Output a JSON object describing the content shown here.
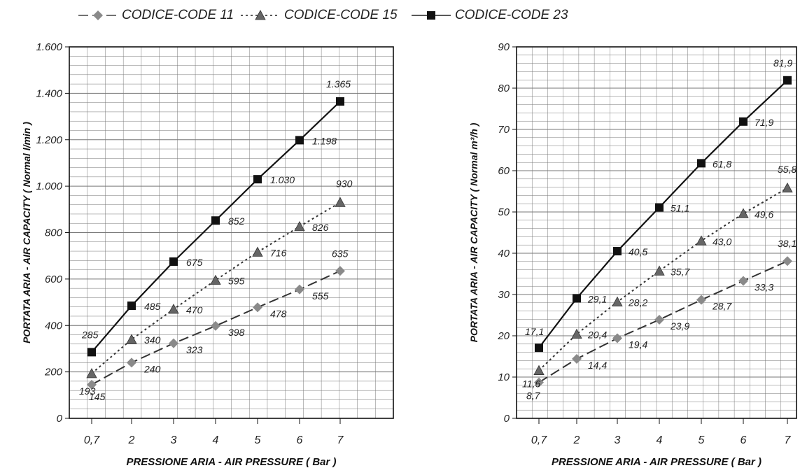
{
  "legend": [
    {
      "name": "CODICE-CODE 11",
      "marker": "diamond",
      "dash": "dash",
      "color": "#8a8a8a"
    },
    {
      "name": "CODICE-CODE 15",
      "marker": "triangle",
      "dash": "dot",
      "color": "#666666"
    },
    {
      "name": "CODICE-CODE 23",
      "marker": "square",
      "dash": "solid",
      "color": "#111111"
    }
  ],
  "chart_data": [
    {
      "type": "line",
      "categories": [
        "0,7",
        "2",
        "3",
        "4",
        "5",
        "6",
        "7"
      ],
      "x": [
        0.7,
        2,
        3,
        4,
        5,
        6,
        7
      ],
      "series": [
        {
          "name": "CODICE-CODE 11",
          "values": [
            145,
            240,
            323,
            398,
            478,
            555,
            635
          ],
          "labels": [
            "145",
            "240",
            "323",
            "398",
            "478",
            "555",
            "635"
          ]
        },
        {
          "name": "CODICE-CODE 15",
          "values": [
            193,
            340,
            470,
            595,
            716,
            826,
            930
          ],
          "labels": [
            "193",
            "340",
            "470",
            "595",
            "716",
            "826",
            "930"
          ]
        },
        {
          "name": "CODICE-CODE 23",
          "values": [
            285,
            485,
            675,
            852,
            1030,
            1198,
            1365
          ],
          "labels": [
            "285",
            "485",
            "675",
            "852",
            "1.030",
            "1.198",
            "1.365"
          ]
        }
      ],
      "xlabel": "PRESSIONE ARIA - AIR PRESSURE ( Bar )",
      "ylabel": "PORTATA ARIA - AIR CAPACITY  ( Normal l/min )",
      "ylim": [
        0,
        1600
      ],
      "yticks": [
        0,
        200,
        400,
        600,
        800,
        1000,
        1200,
        1400,
        1600
      ],
      "yticklabels": [
        "0",
        "200",
        "400",
        "600",
        "800",
        "1.000",
        "1.200",
        "1.400",
        "1.600"
      ],
      "grid": true
    },
    {
      "type": "line",
      "categories": [
        "0,7",
        "2",
        "3",
        "4",
        "5",
        "6",
        "7"
      ],
      "x": [
        0.7,
        2,
        3,
        4,
        5,
        6,
        7
      ],
      "series": [
        {
          "name": "CODICE-CODE 11",
          "values": [
            8.7,
            14.4,
            19.4,
            23.9,
            28.7,
            33.3,
            38.1
          ],
          "labels": [
            "8,7",
            "14,4",
            "19,4",
            "23,9",
            "28,7",
            "33,3",
            "38,1"
          ]
        },
        {
          "name": "CODICE-CODE 15",
          "values": [
            11.6,
            20.4,
            28.2,
            35.7,
            43.0,
            49.6,
            55.8
          ],
          "labels": [
            "11,6",
            "20,4",
            "28,2",
            "35,7",
            "43,0",
            "49,6",
            "55,8"
          ]
        },
        {
          "name": "CODICE-CODE 23",
          "values": [
            17.1,
            29.1,
            40.5,
            51.1,
            61.8,
            71.9,
            81.9
          ],
          "labels": [
            "17,1",
            "29,1",
            "40,5",
            "51,1",
            "61,8",
            "71,9",
            "81,9"
          ]
        }
      ],
      "xlabel": "PRESSIONE ARIA - AIR PRESSURE ( Bar )",
      "ylabel": "PORTATA ARIA - AIR CAPACITY  ( Normal m³/h )",
      "ylim": [
        0,
        90
      ],
      "yticks": [
        0,
        10,
        20,
        30,
        40,
        50,
        60,
        70,
        80,
        90
      ],
      "yticklabels": [
        "0",
        "10",
        "20",
        "30",
        "40",
        "50",
        "60",
        "70",
        "80",
        "90"
      ],
      "grid": true
    }
  ]
}
